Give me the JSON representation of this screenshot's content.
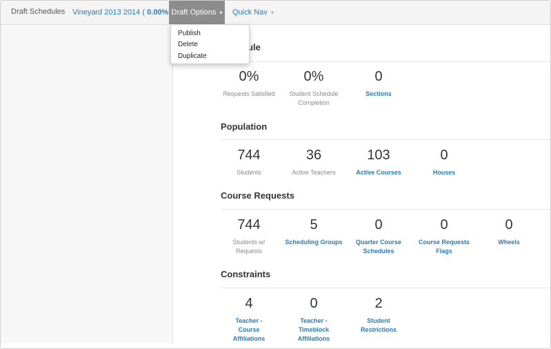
{
  "nav": {
    "brand": "Draft Schedules",
    "schedule_name": "Vineyard 2013 2014",
    "schedule_open": "(",
    "schedule_percent": "0.00%",
    "schedule_close": ")",
    "draft_options": "Draft Options",
    "quick_nav": "Quick Nav"
  },
  "dropdown": {
    "items": [
      "Publish",
      "Delete",
      "Duplicate"
    ]
  },
  "sections": {
    "schedule": {
      "title_visible": "Schedule",
      "stats": [
        {
          "value": "0%",
          "label": "Requests Satisfied"
        },
        {
          "value": "0%",
          "label": "Student Schedule Completion"
        },
        {
          "value": "0",
          "label": "Sections"
        }
      ]
    },
    "population": {
      "title": "Population",
      "stats": [
        {
          "value": "744",
          "label": "Students"
        },
        {
          "value": "36",
          "label": "Active Teachers"
        },
        {
          "value": "103",
          "label": "Active Courses"
        },
        {
          "value": "0",
          "label": "Houses"
        }
      ]
    },
    "course_requests": {
      "title": "Course Requests",
      "stats": [
        {
          "value": "744",
          "label": "Students w/ Requests"
        },
        {
          "value": "5",
          "label": "Scheduling Groups"
        },
        {
          "value": "0",
          "label": "Quarter Course Schedules"
        },
        {
          "value": "0",
          "label": "Course Requests Flags"
        },
        {
          "value": "0",
          "label": "Wheels"
        }
      ]
    },
    "constraints": {
      "title": "Constraints",
      "stats": [
        {
          "value": "4",
          "label": "Teacher - Course Affiliations"
        },
        {
          "value": "0",
          "label": "Teacher - Timeblock Affiliations"
        },
        {
          "value": "2",
          "label": "Student Restrictions"
        }
      ]
    }
  }
}
